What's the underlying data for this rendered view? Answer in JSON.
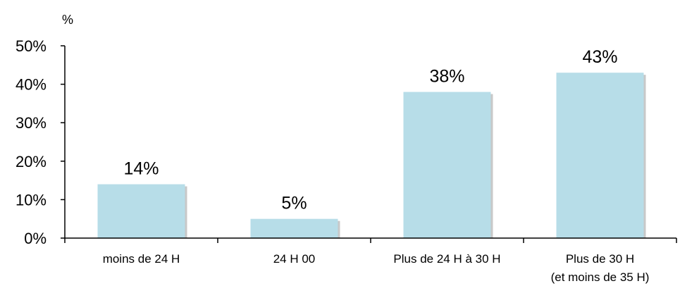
{
  "chart_data": {
    "type": "bar",
    "title": "",
    "unit_label": "%",
    "xlabel": "",
    "ylabel": "",
    "categories": [
      [
        "moins de 24 H"
      ],
      [
        "24 H 00"
      ],
      [
        "Plus de 24 H à 30 H"
      ],
      [
        "Plus de 30 H",
        "(et moins de 35 H)"
      ]
    ],
    "values": [
      14,
      5,
      38,
      43
    ],
    "data_labels": [
      "14%",
      "5%",
      "38%",
      "43%"
    ],
    "ylim": [
      0,
      50
    ],
    "yticks": [
      0,
      10,
      20,
      30,
      40,
      50
    ],
    "ytick_labels": [
      "0%",
      "10%",
      "20%",
      "30%",
      "40%",
      "50%"
    ],
    "grid": false,
    "legend": "none",
    "colors": {
      "bar": "#b7dde8",
      "bar_shadow": "#c8c8c8",
      "axis": "#000000"
    }
  }
}
